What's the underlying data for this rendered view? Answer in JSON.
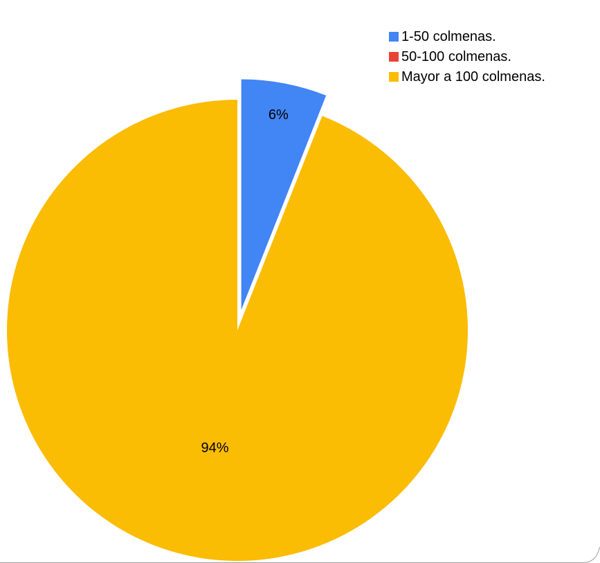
{
  "chart_data": {
    "type": "pie",
    "title": "",
    "exploded": true,
    "slices": [
      {
        "label": "1-50 colmenas.",
        "value": 6,
        "data_label": "6%",
        "color": "#4285f4",
        "exploded": true
      },
      {
        "label": "50-100 colmenas.",
        "value": 0,
        "data_label": "",
        "color": "#ea4335",
        "exploded": false
      },
      {
        "label": "Mayor a 100 colmenas.",
        "value": 94,
        "data_label": "94%",
        "color": "#fbbc04",
        "exploded": false
      }
    ],
    "legend_position": "top-right"
  }
}
